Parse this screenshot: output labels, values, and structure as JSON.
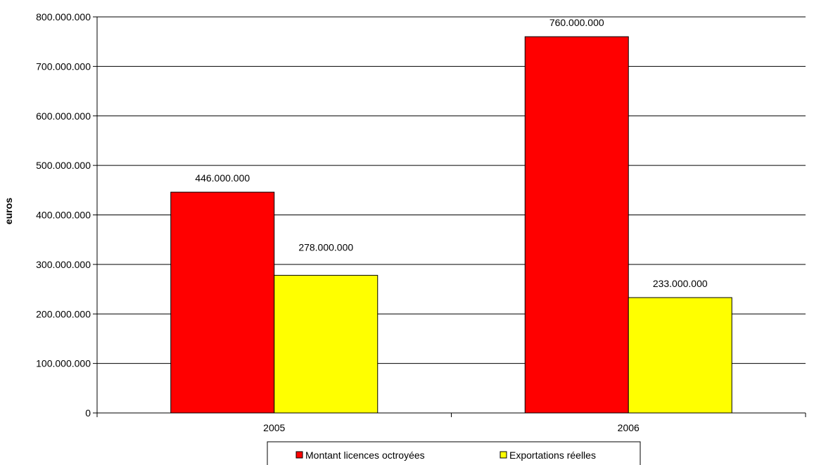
{
  "chart_data": {
    "type": "bar",
    "title": "",
    "xlabel": "",
    "ylabel": "euros",
    "categories": [
      "2005",
      "2006"
    ],
    "series": [
      {
        "name": "Montant licences octroyées",
        "values": [
          446000000,
          760000000
        ],
        "color": "#FF0000",
        "labels": [
          "446.000.000",
          "760.000.000"
        ]
      },
      {
        "name": "Exportations réelles",
        "values": [
          278000000,
          233000000
        ],
        "color": "#FFFF00",
        "labels": [
          "278.000.000",
          "233.000.000"
        ]
      }
    ],
    "ylim": [
      0,
      800000000
    ],
    "yticks": [
      0,
      100000000,
      200000000,
      300000000,
      400000000,
      500000000,
      600000000,
      700000000,
      800000000
    ],
    "ytick_labels": [
      "0",
      "100.000.000",
      "200.000.000",
      "300.000.000",
      "400.000.000",
      "500.000.000",
      "600.000.000",
      "700.000.000",
      "800.000.000"
    ],
    "grid": true,
    "legend_position": "bottom"
  }
}
